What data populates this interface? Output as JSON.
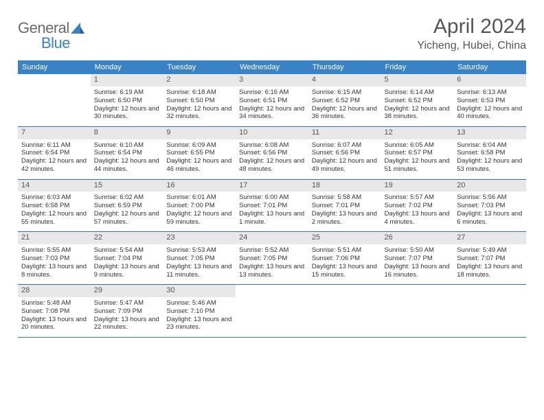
{
  "brand": {
    "part1": "General",
    "part2": "Blue"
  },
  "title": "April 2024",
  "location": "Yicheng, Hubei, China",
  "styling": {
    "header_bg": "#3b82c4",
    "header_text": "#ffffff",
    "daynum_bg": "#e8e8e8",
    "border_color": "#3b6fa0",
    "body_text": "#333333",
    "title_color": "#555555",
    "month_fontsize": 30,
    "location_fontsize": 16,
    "weekday_fontsize": 11,
    "cell_fontsize": 9.5
  },
  "weekdays": [
    "Sunday",
    "Monday",
    "Tuesday",
    "Wednesday",
    "Thursday",
    "Friday",
    "Saturday"
  ],
  "weeks": [
    [
      {
        "n": "",
        "sr": "",
        "ss": "",
        "dl": ""
      },
      {
        "n": "1",
        "sr": "Sunrise: 6:19 AM",
        "ss": "Sunset: 6:50 PM",
        "dl": "Daylight: 12 hours and 30 minutes."
      },
      {
        "n": "2",
        "sr": "Sunrise: 6:18 AM",
        "ss": "Sunset: 6:50 PM",
        "dl": "Daylight: 12 hours and 32 minutes."
      },
      {
        "n": "3",
        "sr": "Sunrise: 6:16 AM",
        "ss": "Sunset: 6:51 PM",
        "dl": "Daylight: 12 hours and 34 minutes."
      },
      {
        "n": "4",
        "sr": "Sunrise: 6:15 AM",
        "ss": "Sunset: 6:52 PM",
        "dl": "Daylight: 12 hours and 36 minutes."
      },
      {
        "n": "5",
        "sr": "Sunrise: 6:14 AM",
        "ss": "Sunset: 6:52 PM",
        "dl": "Daylight: 12 hours and 38 minutes."
      },
      {
        "n": "6",
        "sr": "Sunrise: 6:13 AM",
        "ss": "Sunset: 6:53 PM",
        "dl": "Daylight: 12 hours and 40 minutes."
      }
    ],
    [
      {
        "n": "7",
        "sr": "Sunrise: 6:11 AM",
        "ss": "Sunset: 6:54 PM",
        "dl": "Daylight: 12 hours and 42 minutes."
      },
      {
        "n": "8",
        "sr": "Sunrise: 6:10 AM",
        "ss": "Sunset: 6:54 PM",
        "dl": "Daylight: 12 hours and 44 minutes."
      },
      {
        "n": "9",
        "sr": "Sunrise: 6:09 AM",
        "ss": "Sunset: 6:55 PM",
        "dl": "Daylight: 12 hours and 46 minutes."
      },
      {
        "n": "10",
        "sr": "Sunrise: 6:08 AM",
        "ss": "Sunset: 6:56 PM",
        "dl": "Daylight: 12 hours and 48 minutes."
      },
      {
        "n": "11",
        "sr": "Sunrise: 6:07 AM",
        "ss": "Sunset: 6:56 PM",
        "dl": "Daylight: 12 hours and 49 minutes."
      },
      {
        "n": "12",
        "sr": "Sunrise: 6:05 AM",
        "ss": "Sunset: 6:57 PM",
        "dl": "Daylight: 12 hours and 51 minutes."
      },
      {
        "n": "13",
        "sr": "Sunrise: 6:04 AM",
        "ss": "Sunset: 6:58 PM",
        "dl": "Daylight: 12 hours and 53 minutes."
      }
    ],
    [
      {
        "n": "14",
        "sr": "Sunrise: 6:03 AM",
        "ss": "Sunset: 6:58 PM",
        "dl": "Daylight: 12 hours and 55 minutes."
      },
      {
        "n": "15",
        "sr": "Sunrise: 6:02 AM",
        "ss": "Sunset: 6:59 PM",
        "dl": "Daylight: 12 hours and 57 minutes."
      },
      {
        "n": "16",
        "sr": "Sunrise: 6:01 AM",
        "ss": "Sunset: 7:00 PM",
        "dl": "Daylight: 12 hours and 59 minutes."
      },
      {
        "n": "17",
        "sr": "Sunrise: 6:00 AM",
        "ss": "Sunset: 7:01 PM",
        "dl": "Daylight: 13 hours and 1 minute."
      },
      {
        "n": "18",
        "sr": "Sunrise: 5:58 AM",
        "ss": "Sunset: 7:01 PM",
        "dl": "Daylight: 13 hours and 2 minutes."
      },
      {
        "n": "19",
        "sr": "Sunrise: 5:57 AM",
        "ss": "Sunset: 7:02 PM",
        "dl": "Daylight: 13 hours and 4 minutes."
      },
      {
        "n": "20",
        "sr": "Sunrise: 5:56 AM",
        "ss": "Sunset: 7:03 PM",
        "dl": "Daylight: 13 hours and 6 minutes."
      }
    ],
    [
      {
        "n": "21",
        "sr": "Sunrise: 5:55 AM",
        "ss": "Sunset: 7:03 PM",
        "dl": "Daylight: 13 hours and 8 minutes."
      },
      {
        "n": "22",
        "sr": "Sunrise: 5:54 AM",
        "ss": "Sunset: 7:04 PM",
        "dl": "Daylight: 13 hours and 9 minutes."
      },
      {
        "n": "23",
        "sr": "Sunrise: 5:53 AM",
        "ss": "Sunset: 7:05 PM",
        "dl": "Daylight: 13 hours and 11 minutes."
      },
      {
        "n": "24",
        "sr": "Sunrise: 5:52 AM",
        "ss": "Sunset: 7:05 PM",
        "dl": "Daylight: 13 hours and 13 minutes."
      },
      {
        "n": "25",
        "sr": "Sunrise: 5:51 AM",
        "ss": "Sunset: 7:06 PM",
        "dl": "Daylight: 13 hours and 15 minutes."
      },
      {
        "n": "26",
        "sr": "Sunrise: 5:50 AM",
        "ss": "Sunset: 7:07 PM",
        "dl": "Daylight: 13 hours and 16 minutes."
      },
      {
        "n": "27",
        "sr": "Sunrise: 5:49 AM",
        "ss": "Sunset: 7:07 PM",
        "dl": "Daylight: 13 hours and 18 minutes."
      }
    ],
    [
      {
        "n": "28",
        "sr": "Sunrise: 5:48 AM",
        "ss": "Sunset: 7:08 PM",
        "dl": "Daylight: 13 hours and 20 minutes."
      },
      {
        "n": "29",
        "sr": "Sunrise: 5:47 AM",
        "ss": "Sunset: 7:09 PM",
        "dl": "Daylight: 13 hours and 22 minutes."
      },
      {
        "n": "30",
        "sr": "Sunrise: 5:46 AM",
        "ss": "Sunset: 7:10 PM",
        "dl": "Daylight: 13 hours and 23 minutes."
      },
      {
        "n": "",
        "sr": "",
        "ss": "",
        "dl": ""
      },
      {
        "n": "",
        "sr": "",
        "ss": "",
        "dl": ""
      },
      {
        "n": "",
        "sr": "",
        "ss": "",
        "dl": ""
      },
      {
        "n": "",
        "sr": "",
        "ss": "",
        "dl": ""
      }
    ]
  ]
}
